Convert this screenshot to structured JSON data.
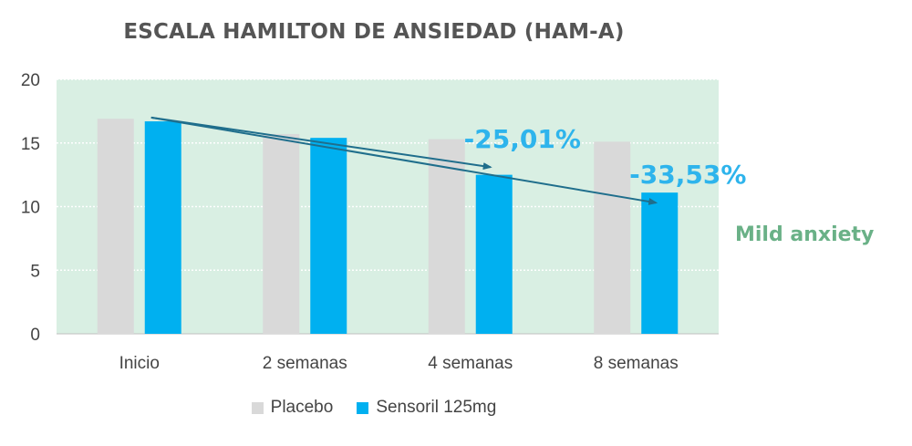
{
  "chart_data": {
    "type": "bar",
    "title": "ESCALA HAMILTON DE ANSIEDAD (HAM-A)",
    "categories": [
      "Inicio",
      "2 semanas",
      "4 semanas",
      "8 semanas"
    ],
    "series": [
      {
        "name": "Placebo",
        "values": [
          16.9,
          15.7,
          15.3,
          15.1
        ],
        "color": "#d9d9d9"
      },
      {
        "name": "Sensoril 125mg",
        "values": [
          16.7,
          15.4,
          12.5,
          11.1
        ],
        "color": "#00b0f0"
      }
    ],
    "ylim": [
      0,
      20
    ],
    "yticks": [
      0,
      5,
      10,
      15,
      20
    ],
    "grid": true,
    "legend_position": "bottom",
    "plot_background": "#d9efe3",
    "annotations": [
      {
        "text": "-25,01%",
        "color": "#2eb4ec",
        "arrow_from": {
          "category": "Inicio",
          "value": 17.0
        },
        "arrow_to": {
          "category": "4 semanas",
          "value": 13.1
        }
      },
      {
        "text": "-33,53%",
        "color": "#2eb4ec",
        "arrow_from": {
          "category": "Inicio",
          "value": 17.0
        },
        "arrow_to": {
          "category": "8 semanas",
          "value": 10.3
        }
      }
    ],
    "arrow_color": "#1f6e8c",
    "side_label": {
      "text": "Mild anxiety",
      "color": "#6ab187"
    }
  }
}
